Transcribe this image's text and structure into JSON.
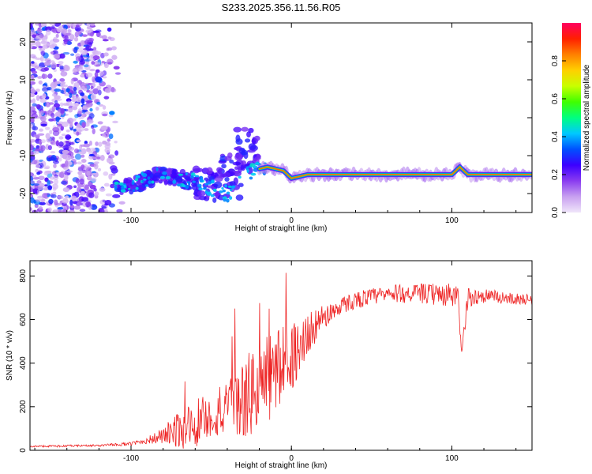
{
  "figure_title": "S233.2025.356.11.56.R05",
  "chart_data": [
    {
      "id": "spectrogram",
      "type": "heatmap",
      "xlabel": "Height of straight line (km)",
      "ylabel": "Frequency (Hz)",
      "xlim": [
        -163,
        150
      ],
      "ylim": [
        -25,
        25
      ],
      "xticks": [
        -100,
        0,
        100
      ],
      "yticks": [
        -20,
        -10,
        0,
        10,
        20
      ],
      "colorbar": {
        "label": "Normalized spectral amplitude",
        "range": [
          0,
          1
        ],
        "ticks": [
          0.0,
          0.2,
          0.4,
          0.6,
          0.8
        ],
        "colormap": [
          "#f0e6fa",
          "#c8a0f0",
          "#8a3cf0",
          "#3c00ff",
          "#0050ff",
          "#00c8ff",
          "#00ff80",
          "#40ff00",
          "#c8ff00",
          "#ffd000",
          "#ff8000",
          "#ff2000",
          "#ff0060"
        ]
      },
      "features": {
        "noise_region_x": [
          -163,
          -105
        ],
        "carrier_track": [
          [
            -110,
            -19
          ],
          [
            -80,
            -15
          ],
          [
            -60,
            -17
          ],
          [
            -40,
            -20
          ],
          [
            -25,
            -14
          ],
          [
            -15,
            -13
          ],
          [
            -5,
            -14
          ],
          [
            0,
            -16
          ],
          [
            10,
            -15
          ],
          [
            50,
            -15
          ],
          [
            100,
            -15
          ],
          [
            105,
            -13
          ],
          [
            110,
            -15
          ],
          [
            150,
            -15
          ]
        ]
      }
    },
    {
      "id": "snr",
      "type": "line",
      "xlabel": "Height of straight line (km)",
      "ylabel": "SNR (10 * v/v)",
      "xlim": [
        -163,
        150
      ],
      "ylim": [
        0,
        870
      ],
      "xticks": [
        -100,
        0,
        100
      ],
      "yticks": [
        0,
        200,
        400,
        600,
        800
      ],
      "series": [
        {
          "name": "SNR",
          "color": "#ee2222",
          "x": [
            -163,
            -140,
            -120,
            -100,
            -90,
            -80,
            -70,
            -60,
            -50,
            -40,
            -30,
            -20,
            -10,
            0,
            10,
            20,
            30,
            40,
            50,
            60,
            70,
            80,
            90,
            100,
            104,
            106,
            110,
            120,
            130,
            150
          ],
          "y": [
            18,
            20,
            22,
            30,
            45,
            65,
            95,
            130,
            150,
            175,
            230,
            290,
            360,
            430,
            530,
            610,
            660,
            690,
            705,
            715,
            720,
            720,
            715,
            710,
            700,
            440,
            700,
            710,
            700,
            690
          ],
          "noise_amplitude": [
            5,
            6,
            6,
            10,
            20,
            50,
            110,
            170,
            110,
            170,
            230,
            280,
            260,
            200,
            120,
            70,
            50,
            50,
            50,
            50,
            55,
            55,
            65,
            70,
            60,
            30,
            55,
            45,
            35,
            30
          ]
        }
      ]
    }
  ]
}
